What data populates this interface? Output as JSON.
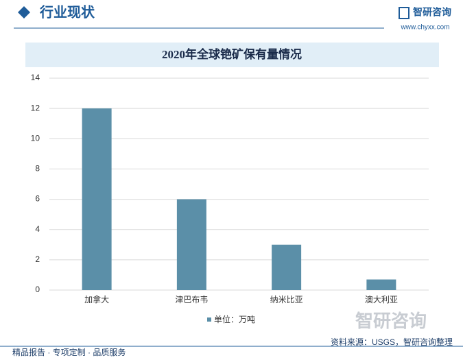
{
  "header": {
    "title": "行业现状",
    "logo": "智研咨询",
    "url": "www.chyxx.com"
  },
  "chart_data": {
    "type": "bar",
    "title": "2020年全球铯矿保有量情况",
    "categories": [
      "加拿大",
      "津巴布韦",
      "纳米比亚",
      "澳大利亚"
    ],
    "series": [
      {
        "name": "单位：万吨",
        "color": "#5b8fa8",
        "values": [
          12,
          6,
          3,
          0.7
        ]
      }
    ],
    "ylim": [
      0,
      14
    ],
    "yticks": [
      0,
      2,
      4,
      6,
      8,
      10,
      12,
      14
    ],
    "grid": true,
    "source": "资料来源：USGS，智研咨询整理"
  },
  "footer": {
    "text": "精品报告 · 专项定制 · 品质服务"
  }
}
